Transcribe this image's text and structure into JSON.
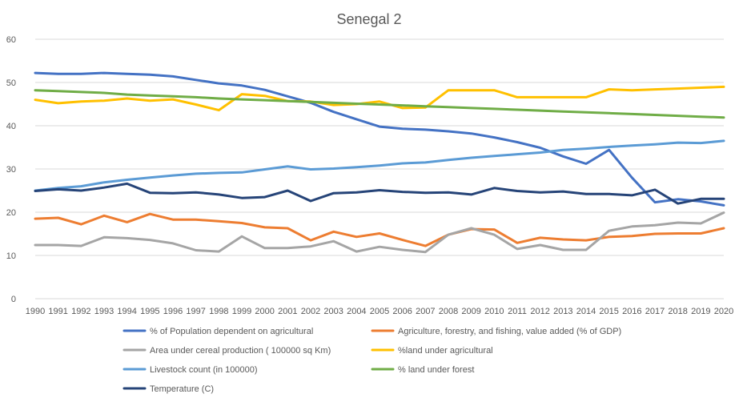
{
  "chart_data": {
    "type": "line",
    "title": "Senegal 2",
    "xlabel": "",
    "ylabel": "",
    "ylim": [
      0,
      60
    ],
    "yticks": [
      0,
      10,
      20,
      30,
      40,
      50,
      60
    ],
    "grid": true,
    "legend_position": "bottom",
    "x": [
      "1990",
      "1991",
      "1992",
      "1993",
      "1994",
      "1995",
      "1996",
      "1997",
      "1998",
      "1999",
      "2000",
      "2001",
      "2002",
      "2003",
      "2004",
      "2005",
      "2006",
      "2007",
      "2008",
      "2009",
      "2010",
      "2011",
      "2012",
      "2013",
      "2014",
      "2015",
      "2016",
      "2017",
      "2018",
      "2019",
      "2020"
    ],
    "series": [
      {
        "name": "% of Population dependent on agricultural",
        "color": "#4472c4",
        "values": [
          52.2,
          52.0,
          52.0,
          52.2,
          52.0,
          51.8,
          51.4,
          50.6,
          49.8,
          49.3,
          48.3,
          46.8,
          45.3,
          43.2,
          41.5,
          39.8,
          39.3,
          39.1,
          38.7,
          38.2,
          37.3,
          36.2,
          34.9,
          32.9,
          31.2,
          34.4,
          28.0,
          22.3,
          23.0,
          22.5,
          21.6
        ]
      },
      {
        "name": "Agriculture, forestry, and fishing, value added (% of GDP)",
        "color": "#ed7d31",
        "values": [
          18.5,
          18.7,
          17.2,
          19.2,
          17.7,
          19.6,
          18.3,
          18.3,
          17.9,
          17.5,
          16.5,
          16.3,
          13.5,
          15.5,
          14.3,
          15.1,
          13.6,
          12.2,
          14.8,
          16.1,
          16.0,
          12.9,
          14.1,
          13.7,
          13.5,
          14.3,
          14.5,
          15.0,
          15.1,
          15.1,
          16.3
        ]
      },
      {
        "name": "Area under cereal production ( 100000 sq Km)",
        "color": "#a5a5a5",
        "values": [
          12.4,
          12.4,
          12.2,
          14.2,
          14.0,
          13.6,
          12.8,
          11.2,
          10.9,
          14.4,
          11.7,
          11.7,
          12.1,
          13.3,
          10.9,
          12.0,
          11.3,
          10.8,
          14.8,
          16.3,
          14.8,
          11.5,
          12.4,
          11.3,
          11.3,
          15.7,
          16.7,
          17.0,
          17.6,
          17.4,
          19.9
        ]
      },
      {
        "name": "%land under agricultural",
        "color": "#ffc000",
        "values": [
          46.0,
          45.2,
          45.6,
          45.8,
          46.3,
          45.8,
          46.1,
          44.9,
          43.6,
          47.3,
          46.9,
          45.7,
          45.6,
          44.8,
          45.0,
          45.6,
          44.1,
          44.2,
          48.2,
          48.2,
          48.2,
          46.6,
          46.6,
          46.6,
          46.6,
          48.4,
          48.2,
          48.4,
          48.6,
          48.8,
          49.0
        ]
      },
      {
        "name": "Livestock count (in 100000)",
        "color": "#5b9bd5",
        "values": [
          25.0,
          25.6,
          26.0,
          26.9,
          27.5,
          28.0,
          28.5,
          28.9,
          29.1,
          29.2,
          29.9,
          30.6,
          29.9,
          30.1,
          30.4,
          30.8,
          31.3,
          31.5,
          32.1,
          32.6,
          33.0,
          33.4,
          33.8,
          34.4,
          34.7,
          35.1,
          35.4,
          35.7,
          36.1,
          36.0,
          36.5
        ]
      },
      {
        "name": "% land under forest",
        "color": "#70ad47",
        "values": [
          48.2,
          48.0,
          47.8,
          47.6,
          47.2,
          47.0,
          46.8,
          46.6,
          46.3,
          46.1,
          45.9,
          45.7,
          45.5,
          45.3,
          45.1,
          44.9,
          44.7,
          44.5,
          44.3,
          44.1,
          43.9,
          43.7,
          43.5,
          43.3,
          43.1,
          42.9,
          42.7,
          42.5,
          42.3,
          42.1,
          41.9
        ]
      },
      {
        "name": "Temperature (C)",
        "color": "#264478",
        "values": [
          24.9,
          25.3,
          25.0,
          25.7,
          26.6,
          24.5,
          24.4,
          24.6,
          24.1,
          23.3,
          23.5,
          25.0,
          22.6,
          24.4,
          24.6,
          25.1,
          24.7,
          24.5,
          24.6,
          24.1,
          25.6,
          24.9,
          24.6,
          24.8,
          24.2,
          24.2,
          23.9,
          25.2,
          22.0,
          23.1,
          23.1
        ]
      }
    ]
  }
}
